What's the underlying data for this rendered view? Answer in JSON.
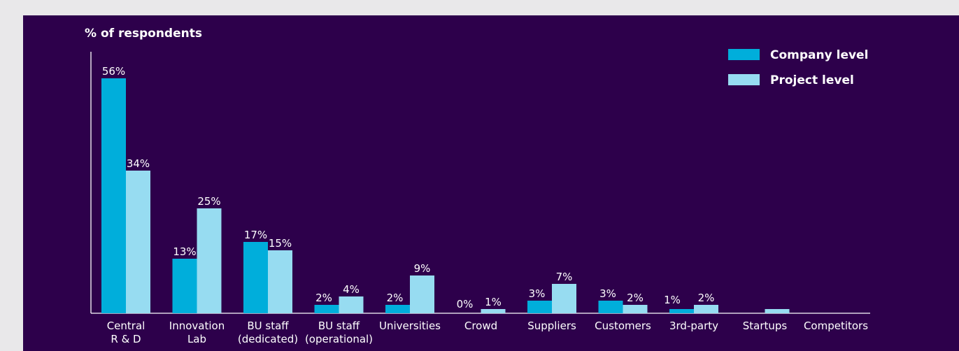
{
  "chart_data": {
    "type": "bar",
    "ylabel": "% of respondents",
    "categories": [
      [
        "Central",
        "R & D"
      ],
      [
        "Innovation",
        "Lab"
      ],
      [
        "BU staff",
        "(dedicated)"
      ],
      [
        "BU staff",
        "(operational)"
      ],
      [
        "Universities"
      ],
      [
        "Crowd"
      ],
      [
        "Suppliers"
      ],
      [
        "Customers"
      ],
      [
        "3rd-party"
      ],
      [
        "Startups"
      ],
      [
        "Competitors"
      ]
    ],
    "series": [
      {
        "name": "Company level",
        "color": "#00aedb",
        "values": [
          56,
          13,
          17,
          2,
          2,
          0,
          3,
          3,
          1,
          null,
          null
        ],
        "labels": [
          "56%",
          "13%",
          "17%",
          "2%",
          "2%",
          "0%",
          "3%",
          "3%",
          "1%",
          "",
          ""
        ]
      },
      {
        "name": "Project level",
        "color": "#97dcf1",
        "values": [
          34,
          25,
          15,
          4,
          9,
          1,
          7,
          2,
          2,
          1,
          null
        ],
        "labels": [
          "34%",
          "25%",
          "15%",
          "4%",
          "9%",
          "1%",
          "7%",
          "2%",
          "2%",
          "",
          ""
        ]
      }
    ],
    "ylim": [
      0,
      60
    ],
    "grid": false,
    "legend_position": "top-right",
    "background": "#2d004b"
  }
}
